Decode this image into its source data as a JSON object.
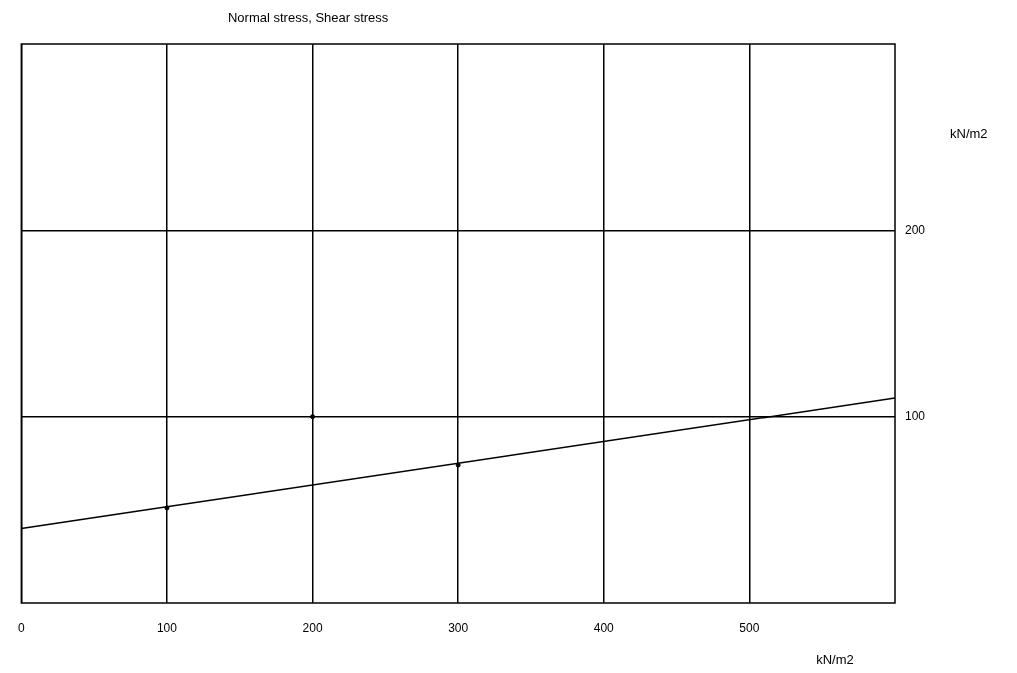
{
  "chart_data": {
    "type": "scatter",
    "title": "Normal stress, Shear stress",
    "xlabel": "kN/m2",
    "ylabel": "kN/m2",
    "xlim": [
      0,
      600
    ],
    "xticks": [
      0,
      100,
      200,
      300,
      400,
      500
    ],
    "ylim": [
      0,
      300
    ],
    "yticks": [
      100,
      200
    ],
    "grid": true,
    "legend": false,
    "marker": "circle",
    "series": [
      {
        "color": "#000000",
        "x": [
          100,
          200,
          300
        ],
        "values": [
          51,
          100,
          74
        ]
      },
      {
        "type": "line",
        "color": "#000000",
        "x": [
          0,
          600
        ],
        "values": [
          40,
          110
        ],
        "marker": "none",
        "line_style": "solid"
      }
    ]
  }
}
